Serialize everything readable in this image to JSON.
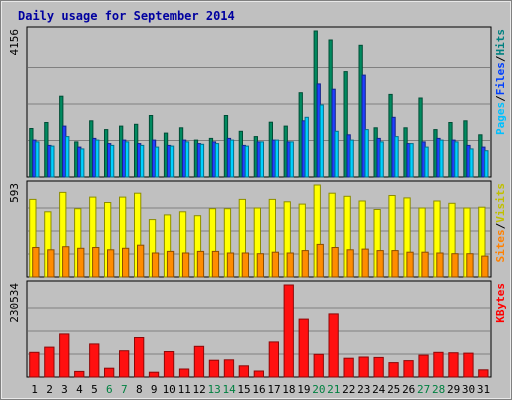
{
  "chart_data": {
    "type": "bar",
    "title": "Daily usage for September 2014",
    "categories": [
      "1",
      "2",
      "3",
      "4",
      "5",
      "6",
      "7",
      "8",
      "9",
      "10",
      "11",
      "12",
      "13",
      "14",
      "15",
      "16",
      "17",
      "18",
      "19",
      "20",
      "21",
      "22",
      "23",
      "24",
      "25",
      "26",
      "27",
      "28",
      "29",
      "30",
      "31"
    ],
    "weekend_days": [
      "6",
      "7",
      "13",
      "14",
      "20",
      "21",
      "27",
      "28"
    ],
    "panels": [
      {
        "id": "hits-files-pages",
        "max_label": "4156",
        "ylim": [
          0,
          4156
        ],
        "side_labels": [
          {
            "text": "Pages",
            "color": "#00c0ff"
          },
          {
            "text": "/",
            "color": "#000000"
          },
          {
            "text": "Files",
            "color": "#0040ff"
          },
          {
            "text": "/",
            "color": "#000000"
          },
          {
            "text": "Hits",
            "color": "#008080"
          }
        ],
        "series": [
          {
            "name": "Hits",
            "color": "#008a60",
            "values": [
              1380,
              1550,
              2300,
              1000,
              1600,
              1350,
              1450,
              1500,
              1750,
              1250,
              1400,
              1050,
              1100,
              1750,
              1300,
              1150,
              1560,
              1450,
              2400,
              4156,
              3900,
              3000,
              3750,
              1400,
              2350,
              1400,
              2250,
              1350,
              1550,
              1600,
              1200
            ]
          },
          {
            "name": "Files",
            "color": "#2040ff",
            "values": [
              1050,
              900,
              1450,
              850,
              1100,
              950,
              1050,
              950,
              1050,
              900,
              1050,
              950,
              1000,
              1100,
              900,
              1000,
              1050,
              1000,
              1600,
              2650,
              2500,
              1200,
              2900,
              1100,
              1700,
              950,
              1000,
              1100,
              1050,
              900,
              850
            ]
          },
          {
            "name": "Pages",
            "color": "#00d0ff",
            "values": [
              1000,
              880,
              1150,
              800,
              1050,
              900,
              1000,
              900,
              850,
              880,
              1000,
              930,
              950,
              1050,
              880,
              1000,
              1050,
              1000,
              1700,
              2050,
              1300,
              1050,
              1350,
              1000,
              1150,
              950,
              850,
              1050,
              1000,
              800,
              750
            ]
          }
        ]
      },
      {
        "id": "visits-sites",
        "max_label": "593",
        "ylim": [
          0,
          593
        ],
        "side_labels": [
          {
            "text": "Sites",
            "color": "#ff8000"
          },
          {
            "text": "/",
            "color": "#000000"
          },
          {
            "text": "Visits",
            "color": "#c0c000"
          }
        ],
        "series": [
          {
            "name": "Visits",
            "color": "#ffff00",
            "values": [
              500,
              420,
              545,
              440,
              515,
              480,
              515,
              540,
              370,
              400,
              420,
              395,
              440,
              440,
              500,
              445,
              500,
              485,
              470,
              593,
              540,
              520,
              490,
              435,
              525,
              510,
              445,
              490,
              475,
              445,
              450
            ]
          },
          {
            "name": "Sites",
            "color": "#ff8c00",
            "values": [
              190,
              175,
              195,
              185,
              190,
              175,
              185,
              205,
              155,
              165,
              155,
              165,
              165,
              155,
              155,
              150,
              160,
              155,
              170,
              210,
              190,
              175,
              180,
              170,
              170,
              160,
              160,
              155,
              150,
              150,
              135
            ]
          }
        ]
      },
      {
        "id": "kbytes",
        "max_label": "230534",
        "ylim": [
          0,
          230534
        ],
        "side_labels": [
          {
            "text": "KBytes",
            "color": "#ff0000"
          }
        ],
        "series": [
          {
            "name": "KBytes",
            "color": "#ff1010",
            "values": [
              62000,
              75000,
              108000,
              14000,
              83000,
              22000,
              66000,
              99000,
              12000,
              64000,
              20000,
              77000,
              42000,
              43000,
              28000,
              15000,
              88000,
              230534,
              145000,
              57000,
              158000,
              47000,
              50000,
              49000,
              36000,
              41000,
              55000,
              62000,
              61000,
              60000,
              18000
            ]
          }
        ]
      }
    ]
  }
}
